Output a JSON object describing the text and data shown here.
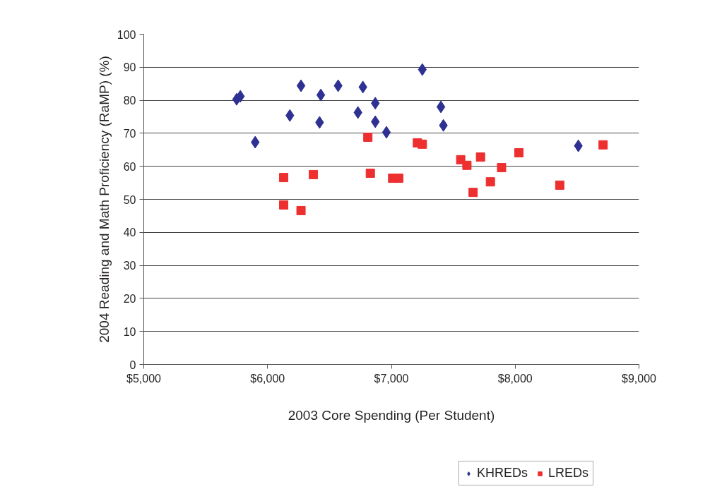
{
  "chart_data": {
    "type": "scatter",
    "xlabel": "2003 Core Spending (Per Student)",
    "ylabel": "2004 Reading and Math Proficiency (RaMP) (%)",
    "xlim": [
      5000,
      9000
    ],
    "xticks": [
      {
        "value": 5000,
        "label": "$5,000"
      },
      {
        "value": 6000,
        "label": "$6,000"
      },
      {
        "value": 7000,
        "label": "$7,000"
      },
      {
        "value": 8000,
        "label": "$8,000"
      },
      {
        "value": 9000,
        "label": "$9,000"
      }
    ],
    "ylim": [
      0,
      100
    ],
    "yticks": [
      0,
      10,
      20,
      30,
      40,
      50,
      60,
      70,
      80,
      90,
      100
    ],
    "grid": "y",
    "legend": "bottom",
    "series": [
      {
        "name": "KHREDs",
        "color": "#2e3192",
        "marker": "diamond",
        "x": [
          5750,
          5780,
          5900,
          6180,
          6270,
          6420,
          6430,
          6570,
          6730,
          6770,
          6870,
          6870,
          6960,
          7250,
          7400,
          7420,
          8510
        ],
        "values": [
          80.3,
          81.2,
          67.3,
          75.4,
          84.4,
          73.3,
          81.6,
          84.4,
          76.3,
          84.0,
          79.1,
          73.5,
          70.3,
          89.3,
          78.0,
          72.4,
          66.2
        ]
      },
      {
        "name": "LREDs",
        "color": "#ed2f2f",
        "marker": "square",
        "x": [
          6130,
          6130,
          6270,
          6370,
          6810,
          6830,
          7010,
          7060,
          7210,
          7250,
          7560,
          7610,
          7660,
          7720,
          7890,
          7800,
          8030,
          8360,
          8710
        ],
        "values": [
          56.6,
          48.3,
          46.6,
          57.5,
          68.8,
          57.9,
          56.4,
          56.4,
          67.1,
          66.7,
          62.0,
          60.3,
          52.1,
          62.8,
          59.6,
          55.3,
          64.1,
          54.3,
          66.5
        ]
      }
    ]
  }
}
